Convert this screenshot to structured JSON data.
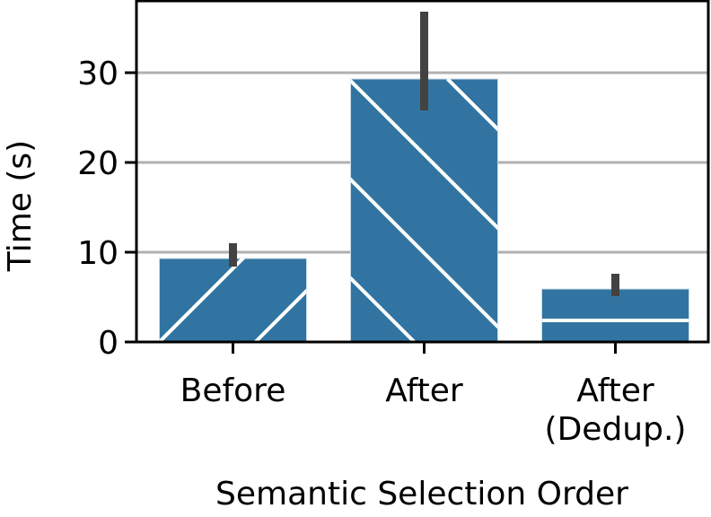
{
  "chart_data": {
    "type": "bar",
    "title": "",
    "xlabel": "Semantic Selection Order",
    "ylabel": "Time (s)",
    "categories": [
      "Before",
      "After",
      "After\n(Dedup.)"
    ],
    "category_lines": [
      [
        "Before"
      ],
      [
        "After"
      ],
      [
        "After",
        "(Dedup.)"
      ]
    ],
    "values": [
      9.3,
      29.3,
      5.9
    ],
    "error_bars": [
      [
        8.4,
        11.0
      ],
      [
        25.8,
        36.8
      ],
      [
        5.1,
        7.6
      ]
    ],
    "hatches": [
      "/",
      "\\",
      "-"
    ],
    "yticks": [
      0,
      10,
      20,
      30
    ],
    "ylim": [
      0,
      38.1
    ],
    "grid": "y",
    "bar_color": "#3274a1",
    "errorbar_color": "#424242",
    "grid_color": "#b0b0b0"
  }
}
